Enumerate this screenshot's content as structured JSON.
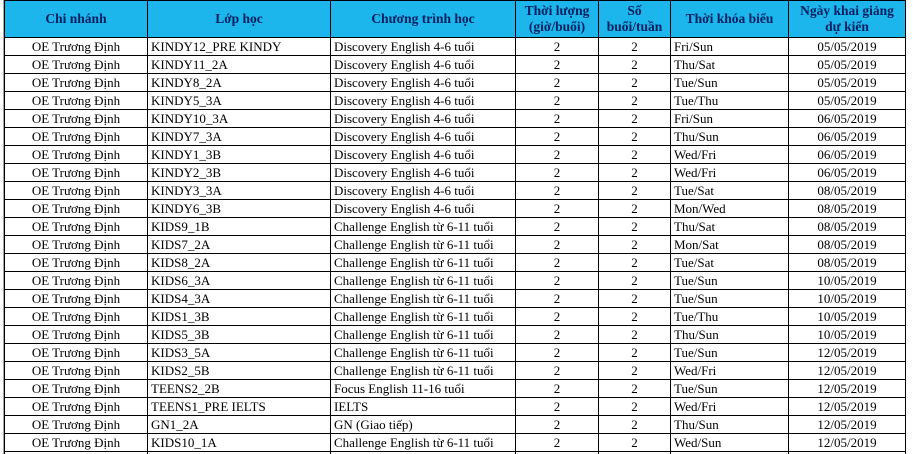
{
  "colors": {
    "header_bg": "#1cb5ec",
    "header_text": "#002060",
    "cell_border": "#000000",
    "sheet_gridline": "#a6a6a6",
    "row_bg": "#ffffff",
    "row_text": "#000000"
  },
  "table": {
    "columns": [
      {
        "key": "branch",
        "label": "Chi nhánh"
      },
      {
        "key": "class_name",
        "label": "Lớp học"
      },
      {
        "key": "program",
        "label": "Chương trình học"
      },
      {
        "key": "duration",
        "label": "Thời lượng (giờ/buổi)"
      },
      {
        "key": "sessions",
        "label": "Số buổi/tuần"
      },
      {
        "key": "schedule",
        "label": "Thời khóa biểu"
      },
      {
        "key": "start_date",
        "label": "Ngày khai giảng dự kiến"
      }
    ],
    "rows": [
      {
        "branch": "OE Trương Định",
        "class_name": "KINDY12_PRE KINDY",
        "program": "Discovery English 4-6 tuổi",
        "duration": "2",
        "sessions": "2",
        "schedule": "Fri/Sun",
        "start_date": "05/05/2019"
      },
      {
        "branch": "OE Trương Định",
        "class_name": "KINDY11_2A",
        "program": "Discovery English 4-6 tuổi",
        "duration": "2",
        "sessions": "2",
        "schedule": "Thu/Sat",
        "start_date": "05/05/2019"
      },
      {
        "branch": "OE Trương Định",
        "class_name": "KINDY8_2A",
        "program": "Discovery English 4-6 tuổi",
        "duration": "2",
        "sessions": "2",
        "schedule": "Tue/Sun",
        "start_date": "05/05/2019"
      },
      {
        "branch": "OE Trương Định",
        "class_name": "KINDY5_3A",
        "program": "Discovery English 4-6 tuổi",
        "duration": "2",
        "sessions": "2",
        "schedule": "Tue/Thu",
        "start_date": "05/05/2019"
      },
      {
        "branch": "OE Trương Định",
        "class_name": "KINDY10_3A",
        "program": "Discovery English 4-6 tuổi",
        "duration": "2",
        "sessions": "2",
        "schedule": "Fri/Sun",
        "start_date": "06/05/2019"
      },
      {
        "branch": "OE Trương Định",
        "class_name": "KINDY7_3A",
        "program": "Discovery English 4-6 tuổi",
        "duration": "2",
        "sessions": "2",
        "schedule": "Thu/Sun",
        "start_date": "06/05/2019"
      },
      {
        "branch": "OE Trương Định",
        "class_name": "KINDY1_3B",
        "program": "Discovery English 4-6 tuổi",
        "duration": "2",
        "sessions": "2",
        "schedule": "Wed/Fri",
        "start_date": "06/05/2019"
      },
      {
        "branch": "OE Trương Định",
        "class_name": "KINDY2_3B",
        "program": "Discovery English 4-6 tuổi",
        "duration": "2",
        "sessions": "2",
        "schedule": "Wed/Fri",
        "start_date": "06/05/2019"
      },
      {
        "branch": "OE Trương Định",
        "class_name": "KINDY3_3A",
        "program": "Discovery English 4-6 tuổi",
        "duration": "2",
        "sessions": "2",
        "schedule": "Tue/Sat",
        "start_date": "08/05/2019"
      },
      {
        "branch": "OE Trương Định",
        "class_name": "KINDY6_3B",
        "program": "Discovery English 4-6 tuổi",
        "duration": "2",
        "sessions": "2",
        "schedule": "Mon/Wed",
        "start_date": "08/05/2019"
      },
      {
        "branch": "OE Trương Định",
        "class_name": "KIDS9_1B",
        "program": "Challenge English từ 6-11 tuổi",
        "duration": "2",
        "sessions": "2",
        "schedule": "Thu/Sat",
        "start_date": "08/05/2019"
      },
      {
        "branch": "OE Trương Định",
        "class_name": "KIDS7_2A",
        "program": "Challenge English từ 6-11 tuổi",
        "duration": "2",
        "sessions": "2",
        "schedule": "Mon/Sat",
        "start_date": "08/05/2019"
      },
      {
        "branch": "OE Trương Định",
        "class_name": "KIDS8_2A",
        "program": "Challenge English từ 6-11 tuổi",
        "duration": "2",
        "sessions": "2",
        "schedule": "Tue/Sat",
        "start_date": "08/05/2019"
      },
      {
        "branch": "OE Trương Định",
        "class_name": "KIDS6_3A",
        "program": "Challenge English từ 6-11 tuổi",
        "duration": "2",
        "sessions": "2",
        "schedule": "Tue/Sun",
        "start_date": "10/05/2019"
      },
      {
        "branch": "OE Trương Định",
        "class_name": "KIDS4_3A",
        "program": "Challenge English từ 6-11 tuổi",
        "duration": "2",
        "sessions": "2",
        "schedule": "Tue/Sun",
        "start_date": "10/05/2019"
      },
      {
        "branch": "OE Trương Định",
        "class_name": "KIDS1_3B",
        "program": "Challenge English từ 6-11 tuổi",
        "duration": "2",
        "sessions": "2",
        "schedule": "Tue/Thu",
        "start_date": "10/05/2019"
      },
      {
        "branch": "OE Trương Định",
        "class_name": "KIDS5_3B",
        "program": "Challenge English từ 6-11 tuổi",
        "duration": "2",
        "sessions": "2",
        "schedule": "Thu/Sun",
        "start_date": "10/05/2019"
      },
      {
        "branch": "OE Trương Định",
        "class_name": "KIDS3_5A",
        "program": "Challenge English từ 6-11 tuổi",
        "duration": "2",
        "sessions": "2",
        "schedule": "Tue/Sun",
        "start_date": "12/05/2019"
      },
      {
        "branch": "OE Trương Định",
        "class_name": "KIDS2_5B",
        "program": "Challenge English từ 6-11 tuổi",
        "duration": "2",
        "sessions": "2",
        "schedule": "Wed/Fri",
        "start_date": "12/05/2019"
      },
      {
        "branch": "OE Trương Định",
        "class_name": "TEENS2_2B",
        "program": "Focus English 11-16 tuổi",
        "duration": "2",
        "sessions": "2",
        "schedule": "Tue/Sun",
        "start_date": "12/05/2019"
      },
      {
        "branch": "OE Trương Định",
        "class_name": "TEENS1_PRE IELTS",
        "program": "IELTS",
        "duration": "2",
        "sessions": "2",
        "schedule": "Wed/Fri",
        "start_date": "12/05/2019"
      },
      {
        "branch": "OE Trương Định",
        "class_name": "GN1_2A",
        "program": "GN (Giao tiếp)",
        "duration": "2",
        "sessions": "2",
        "schedule": "Thu/Sun",
        "start_date": "12/05/2019"
      },
      {
        "branch": "OE Trương Định",
        "class_name": "KIDS10_1A",
        "program": "Challenge English từ 6-11 tuổi",
        "duration": "2",
        "sessions": "2",
        "schedule": "Wed/Sun",
        "start_date": "12/05/2019"
      }
    ]
  }
}
